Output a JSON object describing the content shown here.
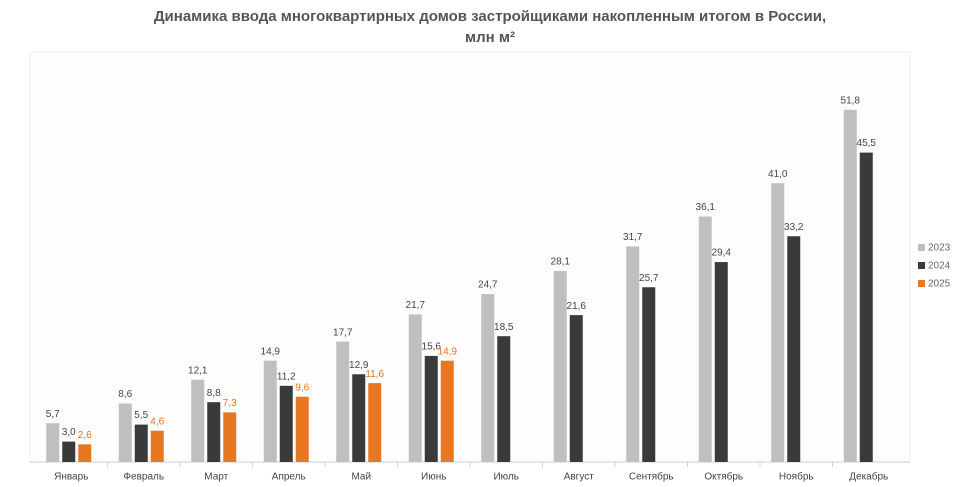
{
  "chart_data": {
    "type": "bar",
    "title": "Динамика ввода многоквартирных домов застройщиками накопленным итогом в России, млн м²",
    "categories": [
      "Январь",
      "Февраль",
      "Март",
      "Апрель",
      "Май",
      "Июнь",
      "Июль",
      "Август",
      "Сентябрь",
      "Октябрь",
      "Ноябрь",
      "Декабрь"
    ],
    "series": [
      {
        "name": "2023",
        "color": "#bfbfbf",
        "values": [
          5.7,
          8.6,
          12.1,
          14.9,
          17.7,
          21.7,
          24.7,
          28.1,
          31.7,
          36.1,
          41.0,
          51.8
        ],
        "value_labels": [
          "5,7",
          "8,6",
          "12,1",
          "14,9",
          "17,7",
          "21,7",
          "24,7",
          "28,1",
          "31,7",
          "36,1",
          "41,0",
          "51,8"
        ]
      },
      {
        "name": "2024",
        "color": "#3a3a3a",
        "values": [
          3.0,
          5.5,
          8.8,
          11.2,
          12.9,
          15.6,
          18.5,
          21.6,
          25.7,
          29.4,
          33.2,
          45.5
        ],
        "value_labels": [
          "3,0",
          "5,5",
          "8,8",
          "11,2",
          "12,9",
          "15,6",
          "18,5",
          "21,6",
          "25,7",
          "29,4",
          "33,2",
          "45,5"
        ]
      },
      {
        "name": "2025",
        "color": "#e87722",
        "values": [
          2.6,
          4.6,
          7.3,
          9.6,
          11.6,
          14.9,
          null,
          null,
          null,
          null,
          null,
          null
        ],
        "value_labels": [
          "2,6",
          "4,6",
          "7,3",
          "9,6",
          "11,6",
          "14,9",
          null,
          null,
          null,
          null,
          null,
          null
        ]
      }
    ],
    "ylim": [
      0,
      55
    ],
    "legend": "right"
  }
}
